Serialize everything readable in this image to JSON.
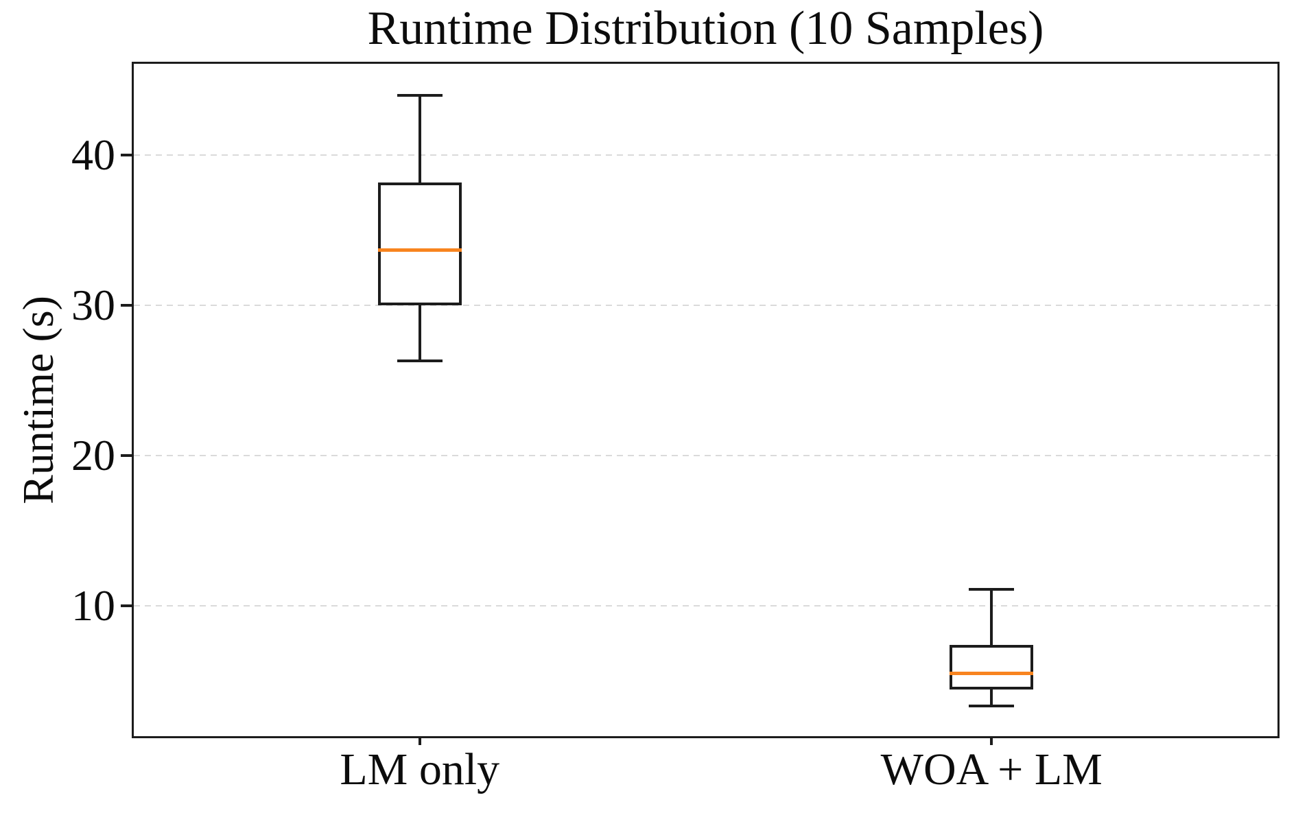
{
  "figure": {
    "background": "#ffffff"
  },
  "chart_data": {
    "type": "boxplot",
    "title": "Runtime Distribution (10 Samples)",
    "ylabel": "Runtime (s)",
    "xlabel": "",
    "categories": [
      "LM only",
      "WOA + LM"
    ],
    "series": [
      {
        "name": "LM only",
        "whisker_low": 26.3,
        "q1": 30.0,
        "median": 33.7,
        "q3": 38.2,
        "whisker_high": 44.0,
        "outliers": []
      },
      {
        "name": "WOA + LM",
        "whisker_low": 3.3,
        "q1": 4.4,
        "median": 5.5,
        "q3": 7.4,
        "whisker_high": 11.1,
        "outliers": []
      }
    ],
    "yticks": [
      10,
      20,
      30,
      40
    ],
    "ylim": [
      1.3,
      46.1
    ],
    "grid": {
      "axis": "y",
      "style": "dashed",
      "color": "#dadada",
      "visible": true
    },
    "legend": "none",
    "colors": {
      "box_edge": "#1c1c1c",
      "median": "#f8841f",
      "axis": "#1c1c1c",
      "grid": "#dadada",
      "tick_label": "#0c0c0c"
    }
  }
}
